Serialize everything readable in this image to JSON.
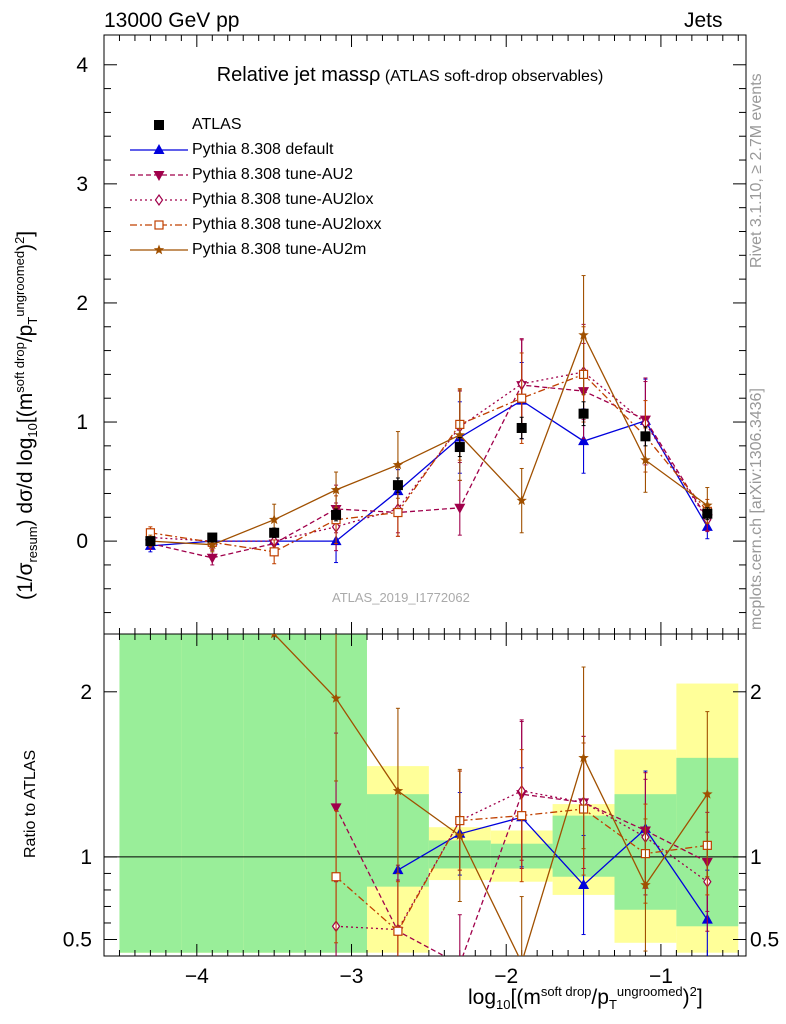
{
  "header": {
    "left": "13000 GeV pp",
    "right": "Jets"
  },
  "title": {
    "main": "Relative jet massρ",
    "sub": "(ATLAS soft-drop observables)"
  },
  "side_labels": {
    "rivet": "Rivet 3.1.10, ≥ 2.7M events",
    "site": "mcplots.cern.ch [arXiv:1306.3436]"
  },
  "watermark": "ATLAS_2019_I1772062",
  "ratio_ylabel": "Ratio to ATLAS",
  "main_ylabel": {
    "a": "(1/σ",
    "a_sub": "resum",
    "b": ") dσ/d log",
    "b_sub": "10",
    "c": "[(m",
    "c_sup": "soft drop",
    "d": "/p",
    "d_sub": "T",
    "d_sup": "ungroomed",
    "e": ")",
    "e_sup": "2",
    "f": "]"
  },
  "xlabel": {
    "a": "log",
    "a_sub": "10",
    "b": "[(m",
    "b_sup": "soft drop",
    "c": "/p",
    "c_sub": "T",
    "c_sup": "ungroomed",
    "d": ")",
    "d_sup": "2",
    "e": "]"
  },
  "legend": [
    {
      "label": "ATLAS",
      "color": "#000000",
      "marker": "square-filled",
      "dash": "none"
    },
    {
      "label": "Pythia 8.308 default",
      "color": "#0000dd",
      "marker": "triangle-up-filled",
      "dash": "solid"
    },
    {
      "label": "Pythia 8.308 tune-AU2",
      "color": "#a0004b",
      "marker": "triangle-down-filled",
      "dash": "dashed"
    },
    {
      "label": "Pythia 8.308 tune-AU2lox",
      "color": "#a0004b",
      "marker": "diamond-open",
      "dash": "dotted"
    },
    {
      "label": "Pythia 8.308 tune-AU2loxx",
      "color": "#c04000",
      "marker": "square-open",
      "dash": "dashdot"
    },
    {
      "label": "Pythia 8.308 tune-AU2m",
      "color": "#a05000",
      "marker": "star",
      "dash": "solid"
    }
  ],
  "chart_data": [
    {
      "type": "line",
      "panel": "main",
      "xlim": [
        -4.6,
        -0.45
      ],
      "ylim": [
        -0.78,
        4.25
      ],
      "xticks": [
        -4,
        -3,
        -2,
        -1
      ],
      "yticks": [
        0,
        1,
        2,
        3,
        4
      ],
      "bin_edges": [
        -4.5,
        -4.1,
        -3.7,
        -3.3,
        -2.9,
        -2.5,
        -2.1,
        -1.7,
        -1.3,
        -0.9,
        -0.5
      ],
      "x": [
        -4.3,
        -3.9,
        -3.5,
        -3.1,
        -2.7,
        -2.3,
        -1.9,
        -1.5,
        -1.1,
        -0.7
      ],
      "series": [
        {
          "name": "ATLAS",
          "values": [
            0.0,
            0.03,
            0.07,
            0.22,
            0.47,
            0.79,
            0.95,
            1.07,
            0.88,
            0.23
          ],
          "errors": [
            0.02,
            0.03,
            0.04,
            0.05,
            0.06,
            0.08,
            0.09,
            0.1,
            0.08,
            0.05
          ]
        },
        {
          "name": "Pythia 8.308 default",
          "values": [
            -0.04,
            0.0,
            0.0,
            0.0,
            0.42,
            0.87,
            1.18,
            0.84,
            1.01,
            0.12
          ],
          "errors": [
            0.05,
            0.05,
            0.08,
            0.18,
            0.18,
            0.3,
            0.32,
            0.27,
            0.35,
            0.1
          ]
        },
        {
          "name": "Pythia 8.308 tune-AU2",
          "values": [
            -0.02,
            -0.14,
            -0.02,
            0.27,
            0.24,
            0.28,
            1.31,
            1.26,
            1.02,
            0.19
          ],
          "errors": [
            0.05,
            0.06,
            0.1,
            0.2,
            0.2,
            0.23,
            0.38,
            0.4,
            0.35,
            0.1
          ]
        },
        {
          "name": "Pythia 8.308 tune-AU2lox",
          "values": [
            0.03,
            0.0,
            0.0,
            0.12,
            0.27,
            0.96,
            1.32,
            1.42,
            0.99,
            0.18
          ],
          "errors": [
            0.05,
            0.06,
            0.1,
            0.2,
            0.2,
            0.3,
            0.38,
            0.4,
            0.35,
            0.1
          ]
        },
        {
          "name": "Pythia 8.308 tune-AU2loxx",
          "values": [
            0.07,
            -0.01,
            -0.09,
            0.18,
            0.24,
            0.98,
            1.2,
            1.4,
            0.88,
            0.25
          ],
          "errors": [
            0.05,
            0.06,
            0.1,
            0.2,
            0.2,
            0.3,
            0.38,
            0.4,
            0.3,
            0.1
          ]
        },
        {
          "name": "Pythia 8.308 tune-AU2m",
          "values": [
            0.0,
            -0.03,
            0.18,
            0.43,
            0.64,
            0.89,
            0.34,
            1.73,
            0.68,
            0.3
          ],
          "errors": [
            0.05,
            0.06,
            0.13,
            0.15,
            0.28,
            0.38,
            0.27,
            0.5,
            0.27,
            0.15
          ]
        }
      ]
    },
    {
      "type": "line",
      "panel": "ratio",
      "ylabel": "Ratio to ATLAS",
      "ylim": [
        0.4,
        2.35
      ],
      "yticks": [
        0.5,
        1,
        2
      ],
      "reference_line": 1,
      "band_green": [
        [
          0.42,
          2.35
        ],
        [
          0.42,
          2.35
        ],
        [
          0.42,
          2.35
        ],
        [
          0.42,
          2.35
        ],
        [
          0.82,
          1.38
        ],
        [
          0.93,
          1.1
        ],
        [
          0.93,
          1.08
        ],
        [
          0.88,
          1.25
        ],
        [
          0.68,
          1.38
        ],
        [
          0.58,
          1.6
        ]
      ],
      "band_yellow": [
        [
          0.42,
          2.35
        ],
        [
          0.42,
          2.35
        ],
        [
          0.42,
          2.35
        ],
        [
          0.42,
          1.72
        ],
        [
          0.42,
          1.55
        ],
        [
          0.86,
          1.18
        ],
        [
          0.85,
          1.16
        ],
        [
          0.77,
          1.32
        ],
        [
          0.48,
          1.65
        ],
        [
          0.42,
          2.05
        ]
      ],
      "series": [
        {
          "name": "Pythia 8.308 default",
          "values": [
            null,
            null,
            null,
            null,
            0.92,
            1.14,
            1.24,
            0.83,
            1.17,
            0.62
          ],
          "errors": [
            0,
            0,
            0,
            0,
            0,
            0.25,
            0.3,
            0.3,
            0.35,
            0.3
          ]
        },
        {
          "name": "Pythia 8.308 tune-AU2",
          "values": [
            null,
            null,
            null,
            1.3,
            0.55,
            0.35,
            1.38,
            1.33,
            1.16,
            0.97
          ],
          "errors": [
            0,
            0,
            0,
            0.45,
            0.4,
            0.3,
            0.45,
            0.4,
            0.35,
            0.3
          ]
        },
        {
          "name": "Pythia 8.308 tune-AU2lox",
          "values": [
            null,
            null,
            null,
            0.58,
            0.56,
            1.22,
            1.4,
            1.33,
            1.12,
            0.85
          ],
          "errors": [
            0,
            0,
            0,
            0.3,
            0.3,
            0.3,
            0.42,
            0.4,
            0.35,
            0.3
          ]
        },
        {
          "name": "Pythia 8.308 tune-AU2loxx",
          "values": [
            null,
            null,
            null,
            0.88,
            0.55,
            1.22,
            1.25,
            1.29,
            1.02,
            1.07
          ],
          "errors": [
            0,
            0,
            0,
            0.4,
            0.3,
            0.3,
            0.4,
            0.4,
            0.3,
            0.3
          ]
        },
        {
          "name": "Pythia 8.308 tune-AU2m",
          "values": [
            null,
            null,
            2.35,
            1.96,
            1.4,
            1.13,
            0.36,
            1.6,
            0.83,
            1.38
          ],
          "errors": [
            0,
            0,
            0,
            0.5,
            0.5,
            0.4,
            0.4,
            0.55,
            0.4,
            0.5
          ]
        }
      ]
    }
  ]
}
